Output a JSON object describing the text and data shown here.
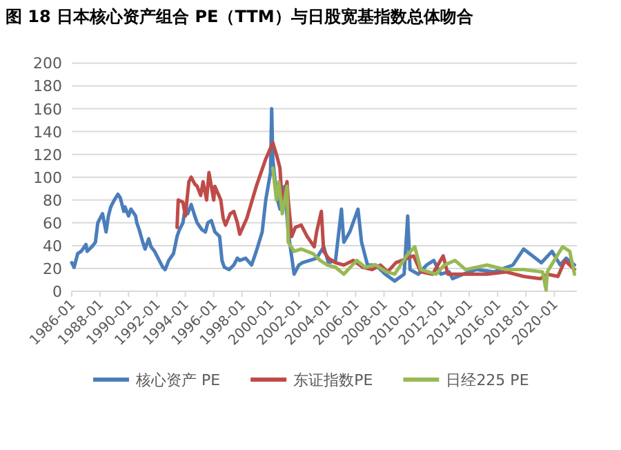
{
  "chart_data": {
    "type": "line",
    "title": "图 18 日本核心资产组合 PE（TTM）与日股宽基指数总体吻合",
    "xlim": [
      "1986-01",
      "2021-08"
    ],
    "xticks": [
      "1986-01",
      "1988-01",
      "1990-01",
      "1992-01",
      "1994-01",
      "1996-01",
      "1998-01",
      "2000-01",
      "2002-01",
      "2004-01",
      "2006-01",
      "2008-01",
      "2010-01",
      "2012-01",
      "2014-01",
      "2016-01",
      "2018-01",
      "2020-01"
    ],
    "ylim": [
      0,
      200
    ],
    "yticks": [
      0,
      20,
      40,
      60,
      80,
      100,
      120,
      140,
      160,
      180,
      200
    ],
    "grid": "y",
    "legend": "bottom",
    "series": [
      {
        "name": "核心资产 PE",
        "color": "#4a7ebb",
        "x": [
          "1986-01",
          "1986-03",
          "1986-06",
          "1986-09",
          "1987-01",
          "1987-02",
          "1987-06",
          "1987-09",
          "1987-11",
          "1988-01",
          "1988-03",
          "1988-06",
          "1988-08",
          "1988-10",
          "1989-01",
          "1989-04",
          "1989-06",
          "1989-09",
          "1989-10",
          "1990-01",
          "1990-03",
          "1990-07",
          "1990-08",
          "1990-10",
          "1991-01",
          "1991-03",
          "1991-06",
          "1991-08",
          "1991-11",
          "1992-02",
          "1992-06",
          "1992-08",
          "1992-11",
          "1993-03",
          "1993-06",
          "1993-08",
          "1993-11",
          "1994-01",
          "1994-03",
          "1994-06",
          "1994-09",
          "1994-11",
          "1995-03",
          "1995-06",
          "1995-08",
          "1995-11",
          "1996-02",
          "1996-06",
          "1996-08",
          "1996-10",
          "1997-02",
          "1997-06",
          "1997-09",
          "1997-11",
          "1998-04",
          "1998-09",
          "1999-01",
          "1999-06",
          "1999-09",
          "2000-01",
          "2000-02",
          "2000-03",
          "2000-06",
          "2000-09",
          "2001-01",
          "2001-04",
          "2001-09",
          "2002-01",
          "2002-04",
          "2002-10",
          "2003-04",
          "2003-10",
          "2004-02",
          "2004-08",
          "2005-01",
          "2005-03",
          "2005-08",
          "2006-03",
          "2006-06",
          "2006-11",
          "2007-06",
          "2007-10",
          "2008-02",
          "2008-10",
          "2009-06",
          "2009-09",
          "2009-11",
          "2010-06",
          "2011-01",
          "2011-07",
          "2012-01",
          "2012-08",
          "2012-11",
          "2013-08",
          "2014-07",
          "2015-10",
          "2017-02",
          "2017-11",
          "2018-09",
          "2019-02",
          "2019-11",
          "2020-06",
          "2020-11",
          "2021-06"
        ],
        "values": [
          25,
          21,
          33,
          35,
          41,
          35,
          39,
          43,
          60,
          64,
          68,
          52,
          66,
          74,
          80,
          85,
          82,
          70,
          74,
          66,
          72,
          66,
          60,
          54,
          43,
          37,
          46,
          39,
          35,
          29,
          21,
          19,
          27,
          33,
          48,
          54,
          60,
          74,
          68,
          76,
          66,
          60,
          54,
          52,
          60,
          62,
          52,
          48,
          27,
          21,
          19,
          23,
          29,
          27,
          29,
          23,
          35,
          52,
          80,
          104,
          160,
          116,
          84,
          72,
          92,
          52,
          15,
          23,
          25,
          27,
          29,
          39,
          25,
          27,
          72,
          43,
          52,
          72,
          43,
          23,
          23,
          19,
          15,
          9,
          15,
          66,
          19,
          15,
          23,
          27,
          15,
          17,
          11,
          15,
          19,
          17,
          23,
          37,
          29,
          25,
          35,
          23,
          29,
          23
        ]
      },
      {
        "name": "东证指数PE",
        "color": "#be4b48",
        "x": [
          "1993-06",
          "1993-07",
          "1993-11",
          "1994-01",
          "1994-04",
          "1994-06",
          "1994-09",
          "1994-11",
          "1995-02",
          "1995-04",
          "1995-07",
          "1995-09",
          "1996-01",
          "1996-02",
          "1996-07",
          "1996-09",
          "1996-11",
          "1997-03",
          "1997-06",
          "1997-09",
          "1997-11",
          "1998-05",
          "1999-01",
          "1999-09",
          "2000-03",
          "2000-06",
          "2000-09",
          "2000-11",
          "2001-03",
          "2001-04",
          "2001-07",
          "2001-10",
          "2002-03",
          "2002-08",
          "2003-02",
          "2003-04",
          "2003-08",
          "2003-10",
          "2004-02",
          "2004-08",
          "2005-03",
          "2005-11",
          "2006-07",
          "2007-03",
          "2007-10",
          "2008-04",
          "2008-11",
          "2010-02",
          "2010-08",
          "2011-06",
          "2012-03",
          "2012-07",
          "2014-01",
          "2015-04",
          "2016-08",
          "2017-11",
          "2019-01",
          "2019-07",
          "2020-04",
          "2020-10",
          "2021-06"
        ],
        "values": [
          56,
          80,
          78,
          66,
          96,
          100,
          94,
          92,
          84,
          96,
          80,
          104,
          80,
          92,
          80,
          64,
          58,
          68,
          70,
          60,
          50,
          64,
          92,
          116,
          130,
          120,
          108,
          76,
          96,
          80,
          48,
          56,
          58,
          48,
          39,
          52,
          70,
          35,
          29,
          25,
          23,
          27,
          21,
          19,
          23,
          17,
          25,
          31,
          17,
          15,
          31,
          15,
          15,
          15,
          17,
          13,
          11,
          15,
          13,
          27,
          19
        ]
      },
      {
        "name": "日经225 PE",
        "color": "#98b954",
        "x": [
          "2000-03",
          "2000-06",
          "2000-08",
          "2000-11",
          "2001-03",
          "2001-04",
          "2001-09",
          "2002-03",
          "2003-01",
          "2003-07",
          "2004-01",
          "2004-08",
          "2005-03",
          "2006-02",
          "2006-09",
          "2007-06",
          "2008-03",
          "2008-10",
          "2009-08",
          "2010-03",
          "2010-08",
          "2011-09",
          "2012-04",
          "2013-01",
          "2013-10",
          "2015-04",
          "2016-08",
          "2017-11",
          "2019-03",
          "2019-06",
          "2019-07",
          "2020-08",
          "2021-02",
          "2021-06"
        ],
        "values": [
          108,
          80,
          96,
          68,
          92,
          43,
          35,
          37,
          33,
          27,
          23,
          21,
          15,
          27,
          21,
          23,
          17,
          15,
          31,
          39,
          19,
          15,
          23,
          27,
          19,
          23,
          19,
          19,
          17,
          1,
          17,
          39,
          35,
          15
        ]
      }
    ]
  }
}
